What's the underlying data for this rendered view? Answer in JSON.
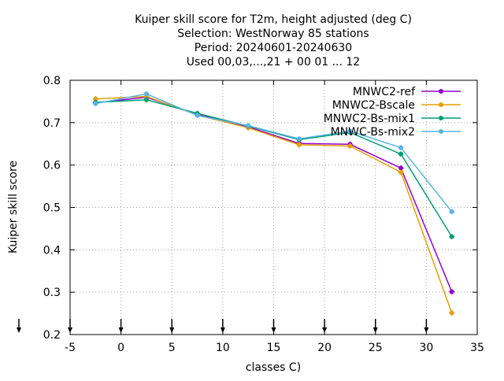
{
  "chart_data": {
    "type": "line",
    "title_lines": [
      "Kuiper skill score  for T2m, height adjusted (deg C)",
      "Selection: WestNorway     85 stations",
      "Period: 20240601-20240630",
      "Used 00,03,...,21 + 00 01 ... 12"
    ],
    "xlabel": "classes C)",
    "ylabel": "Kuiper skill score",
    "xlim": [
      -5,
      35
    ],
    "ylim": [
      0.2,
      0.8
    ],
    "xticks": [
      "-5",
      "0",
      "5",
      "10",
      "15",
      "20",
      "25",
      "30",
      "35"
    ],
    "yticks": [
      "0.2",
      "0.3",
      "0.4",
      "0.5",
      "0.6",
      "0.7",
      "0.8"
    ],
    "grid": true,
    "legend_position": "top-right",
    "class_markers_x": [
      -5,
      0,
      5,
      10,
      15,
      20,
      25,
      30
    ],
    "series": [
      {
        "name": "MNWC2-ref",
        "color": "#9400d3",
        "x": [
          -2.5,
          2.5,
          7.5,
          12.5,
          17.5,
          22.5,
          27.5,
          32.5
        ],
        "values": [
          0.747,
          0.76,
          0.72,
          0.69,
          0.651,
          0.649,
          0.593,
          0.301
        ]
      },
      {
        "name": "MNWC2-Bscale",
        "color": "#e69f00",
        "x": [
          -2.5,
          2.5,
          7.5,
          12.5,
          17.5,
          22.5,
          27.5,
          32.5
        ],
        "values": [
          0.756,
          0.762,
          0.718,
          0.688,
          0.648,
          0.645,
          0.583,
          0.251
        ]
      },
      {
        "name": "MNWC2-Bs-mix1",
        "color": "#009e73",
        "x": [
          -2.5,
          2.5,
          7.5,
          12.5,
          17.5,
          22.5,
          27.5,
          32.5
        ],
        "values": [
          0.748,
          0.754,
          0.722,
          0.692,
          0.66,
          0.677,
          0.626,
          0.431
        ]
      },
      {
        "name": "MNWC-Bs-mix2",
        "color": "#56b4e9",
        "x": [
          -2.5,
          2.5,
          7.5,
          12.5,
          17.5,
          22.5,
          27.5,
          32.5
        ],
        "values": [
          0.745,
          0.768,
          0.717,
          0.693,
          0.662,
          0.68,
          0.641,
          0.49
        ]
      }
    ]
  }
}
